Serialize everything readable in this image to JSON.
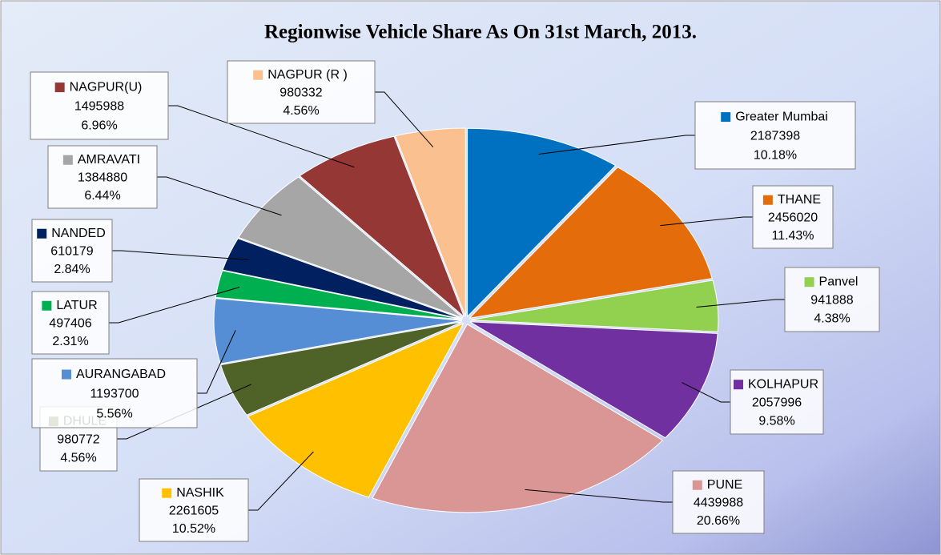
{
  "chart_data": {
    "type": "pie",
    "title": "Regionwise Vehicle Share As On 31st March, 2013.",
    "categories": [
      "Greater Mumbai",
      "THANE",
      "Panvel",
      "KOLHAPUR",
      "PUNE",
      "NASHIK",
      "DHULE",
      "AURANGABAD",
      "LATUR",
      "NANDED",
      "AMRAVATI",
      "NAGPUR(U)",
      "NAGPUR (R )"
    ],
    "values": [
      2187398,
      2456020,
      941888,
      2057996,
      4439988,
      2261605,
      980772,
      1193700,
      497406,
      610179,
      1384880,
      1495988,
      980332
    ],
    "percent_labels": [
      "10.18%",
      "11.43%",
      "4.38%",
      "9.58%",
      "20.66%",
      "10.52%",
      "4.56%",
      "5.56%",
      "2.31%",
      "2.84%",
      "6.44%",
      "6.96%",
      "4.56%"
    ],
    "colors": [
      "#0070c0",
      "#e46c0a",
      "#92d050",
      "#7030a0",
      "#da9694",
      "#ffc000",
      "#4f6228",
      "#558ed5",
      "#00b050",
      "#002060",
      "#a6a6a6",
      "#953735",
      "#fac090"
    ]
  }
}
